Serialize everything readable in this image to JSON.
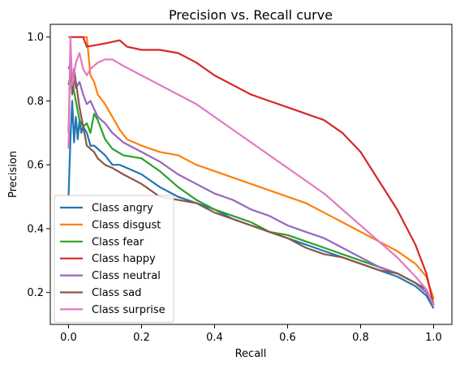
{
  "chart_data": {
    "type": "line",
    "title": "Precision vs. Recall curve",
    "xlabel": "Recall",
    "ylabel": "Precision",
    "xlim": [
      -0.05,
      1.05
    ],
    "ylim": [
      0.1,
      1.04
    ],
    "xticks": [
      0.0,
      0.2,
      0.4,
      0.6,
      0.8,
      1.0
    ],
    "xtick_labels": [
      "0.0",
      "0.2",
      "0.4",
      "0.6",
      "0.8",
      "1.0"
    ],
    "yticks": [
      0.2,
      0.4,
      0.6,
      0.8,
      1.0
    ],
    "ytick_labels": [
      "0.2",
      "0.4",
      "0.6",
      "0.8",
      "1.0"
    ],
    "grid": false,
    "legend_position": "lower-left",
    "series": [
      {
        "name": "Class angry",
        "color": "#1f77b4",
        "x": [
          0.0,
          0.005,
          0.01,
          0.015,
          0.02,
          0.025,
          0.03,
          0.035,
          0.04,
          0.05,
          0.06,
          0.07,
          0.08,
          0.1,
          0.12,
          0.14,
          0.16,
          0.2,
          0.25,
          0.3,
          0.35,
          0.4,
          0.45,
          0.5,
          0.55,
          0.6,
          0.65,
          0.7,
          0.75,
          0.8,
          0.85,
          0.9,
          0.95,
          0.98,
          1.0
        ],
        "y": [
          0.5,
          0.68,
          0.8,
          0.67,
          0.75,
          0.68,
          0.74,
          0.7,
          0.72,
          0.7,
          0.66,
          0.66,
          0.65,
          0.63,
          0.6,
          0.6,
          0.59,
          0.57,
          0.53,
          0.5,
          0.48,
          0.46,
          0.43,
          0.41,
          0.39,
          0.37,
          0.35,
          0.33,
          0.31,
          0.29,
          0.27,
          0.25,
          0.22,
          0.19,
          0.15
        ]
      },
      {
        "name": "Class disgust",
        "color": "#ff7f0e",
        "x": [
          0.0,
          0.005,
          0.01,
          0.03,
          0.05,
          0.06,
          0.07,
          0.08,
          0.1,
          0.12,
          0.14,
          0.16,
          0.2,
          0.25,
          0.3,
          0.35,
          0.4,
          0.45,
          0.5,
          0.55,
          0.6,
          0.65,
          0.7,
          0.75,
          0.8,
          0.85,
          0.9,
          0.95,
          0.98,
          1.0
        ],
        "y": [
          1.0,
          1.0,
          1.0,
          1.0,
          1.0,
          0.88,
          0.86,
          0.82,
          0.79,
          0.75,
          0.71,
          0.68,
          0.66,
          0.64,
          0.63,
          0.6,
          0.58,
          0.56,
          0.54,
          0.52,
          0.5,
          0.48,
          0.45,
          0.42,
          0.39,
          0.36,
          0.33,
          0.29,
          0.25,
          0.18
        ]
      },
      {
        "name": "Class fear",
        "color": "#2ca02c",
        "x": [
          0.0,
          0.005,
          0.01,
          0.02,
          0.03,
          0.04,
          0.05,
          0.06,
          0.07,
          0.08,
          0.1,
          0.12,
          0.15,
          0.2,
          0.25,
          0.3,
          0.35,
          0.4,
          0.45,
          0.5,
          0.55,
          0.6,
          0.65,
          0.7,
          0.75,
          0.8,
          0.85,
          0.9,
          0.95,
          0.98,
          1.0
        ],
        "y": [
          0.85,
          0.88,
          0.86,
          0.8,
          0.74,
          0.72,
          0.73,
          0.7,
          0.76,
          0.74,
          0.68,
          0.65,
          0.63,
          0.62,
          0.58,
          0.53,
          0.49,
          0.46,
          0.44,
          0.42,
          0.39,
          0.38,
          0.36,
          0.34,
          0.32,
          0.3,
          0.28,
          0.26,
          0.23,
          0.2,
          0.16
        ]
      },
      {
        "name": "Class happy",
        "color": "#d62728",
        "x": [
          0.0,
          0.005,
          0.01,
          0.02,
          0.04,
          0.05,
          0.1,
          0.14,
          0.16,
          0.2,
          0.25,
          0.3,
          0.35,
          0.4,
          0.45,
          0.5,
          0.55,
          0.6,
          0.65,
          0.7,
          0.75,
          0.8,
          0.85,
          0.9,
          0.95,
          0.98,
          1.0
        ],
        "y": [
          1.0,
          1.0,
          1.0,
          1.0,
          1.0,
          0.97,
          0.98,
          0.99,
          0.97,
          0.96,
          0.96,
          0.95,
          0.92,
          0.88,
          0.85,
          0.82,
          0.8,
          0.78,
          0.76,
          0.74,
          0.7,
          0.64,
          0.55,
          0.46,
          0.35,
          0.26,
          0.16
        ]
      },
      {
        "name": "Class neutral",
        "color": "#9467bd",
        "x": [
          0.0,
          0.005,
          0.01,
          0.02,
          0.03,
          0.04,
          0.05,
          0.06,
          0.08,
          0.1,
          0.12,
          0.15,
          0.2,
          0.25,
          0.3,
          0.35,
          0.4,
          0.45,
          0.5,
          0.55,
          0.6,
          0.65,
          0.7,
          0.75,
          0.8,
          0.85,
          0.9,
          0.95,
          0.98,
          1.0
        ],
        "y": [
          0.9,
          0.92,
          0.88,
          0.84,
          0.86,
          0.82,
          0.79,
          0.8,
          0.75,
          0.73,
          0.7,
          0.67,
          0.64,
          0.61,
          0.57,
          0.54,
          0.51,
          0.49,
          0.46,
          0.44,
          0.41,
          0.39,
          0.37,
          0.34,
          0.31,
          0.28,
          0.26,
          0.23,
          0.2,
          0.16
        ]
      },
      {
        "name": "Class sad",
        "color": "#8c564b",
        "x": [
          0.0,
          0.005,
          0.01,
          0.015,
          0.02,
          0.03,
          0.04,
          0.05,
          0.06,
          0.07,
          0.08,
          0.1,
          0.12,
          0.15,
          0.2,
          0.25,
          0.3,
          0.35,
          0.4,
          0.45,
          0.5,
          0.55,
          0.6,
          0.65,
          0.7,
          0.75,
          0.8,
          0.85,
          0.9,
          0.95,
          0.98,
          1.0
        ],
        "y": [
          0.7,
          0.95,
          0.82,
          0.9,
          0.86,
          0.78,
          0.72,
          0.66,
          0.65,
          0.64,
          0.62,
          0.6,
          0.59,
          0.57,
          0.54,
          0.5,
          0.49,
          0.48,
          0.45,
          0.43,
          0.41,
          0.39,
          0.37,
          0.34,
          0.32,
          0.31,
          0.29,
          0.27,
          0.26,
          0.23,
          0.21,
          0.16
        ]
      },
      {
        "name": "Class surprise",
        "color": "#e377c2",
        "x": [
          0.0,
          0.005,
          0.01,
          0.02,
          0.03,
          0.04,
          0.05,
          0.06,
          0.08,
          0.1,
          0.12,
          0.15,
          0.2,
          0.25,
          0.3,
          0.35,
          0.4,
          0.45,
          0.5,
          0.55,
          0.6,
          0.65,
          0.7,
          0.75,
          0.8,
          0.85,
          0.9,
          0.95,
          0.98,
          1.0
        ],
        "y": [
          0.65,
          1.0,
          0.85,
          0.92,
          0.95,
          0.9,
          0.88,
          0.9,
          0.92,
          0.93,
          0.93,
          0.91,
          0.88,
          0.85,
          0.82,
          0.79,
          0.75,
          0.71,
          0.67,
          0.63,
          0.59,
          0.55,
          0.51,
          0.46,
          0.41,
          0.36,
          0.31,
          0.25,
          0.21,
          0.16
        ]
      }
    ]
  }
}
